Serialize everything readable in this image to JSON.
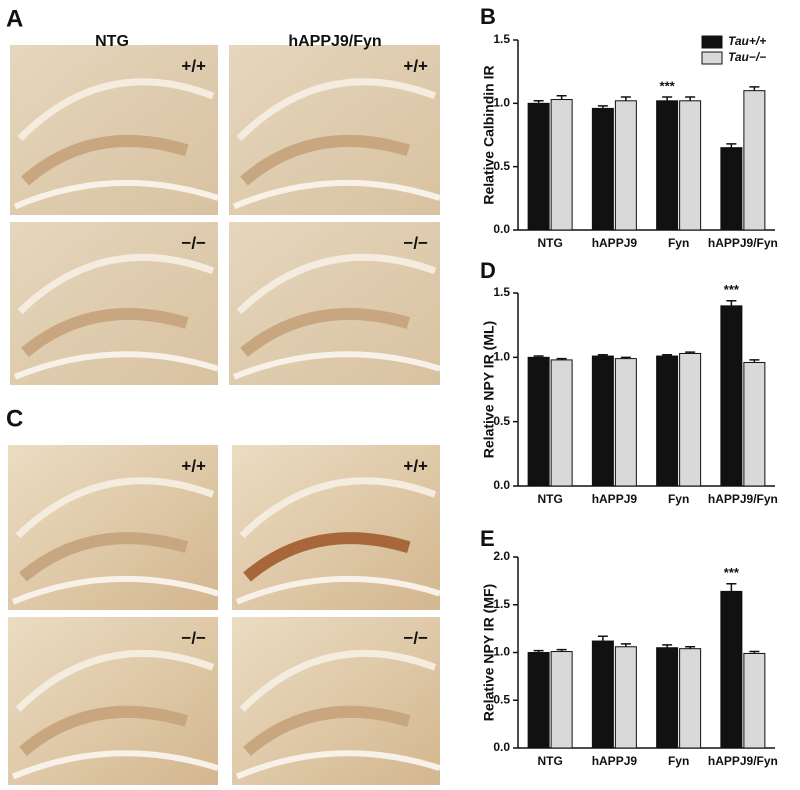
{
  "figure": {
    "panel_labels": [
      "A",
      "C"
    ],
    "column_headers": [
      "NTG",
      "hAPPJ9/Fyn"
    ],
    "images": [
      "+/+",
      "+/+",
      "−/−",
      "−/−",
      "+/+",
      "+/+",
      "−/−",
      "−/−"
    ]
  },
  "chart_data": [
    {
      "type": "bar",
      "panel_label": "B",
      "y_label": "Relative Calbindin IR",
      "categories": [
        "NTG",
        "hAPPJ9",
        "Fyn",
        "hAPPJ9/Fyn"
      ],
      "series": [
        {
          "name": "Tau+/+",
          "color": "#111111",
          "values": [
            1.0,
            0.96,
            1.02,
            0.65
          ],
          "errors": [
            0.02,
            0.02,
            0.03,
            0.03
          ]
        },
        {
          "name": "Tau−/−",
          "color": "#d9d9d9",
          "values": [
            1.03,
            1.02,
            1.02,
            1.1
          ],
          "errors": [
            0.03,
            0.03,
            0.03,
            0.03
          ]
        }
      ],
      "annotation": "***",
      "ylim": [
        0,
        1.5
      ],
      "yticks": [
        {
          "value": 0,
          "label": "0.0"
        },
        0.5,
        {
          "value": 1,
          "label": "1.0"
        },
        1.5
      ]
    },
    {
      "type": "bar",
      "panel_label": "D",
      "y_label": "Relative NPY IR (ML)",
      "categories": [
        "NTG",
        "hAPPJ9",
        "Fyn",
        "hAPPJ9/Fyn"
      ],
      "series": [
        {
          "name": "Tau+/+",
          "color": "#111111",
          "values": [
            1.0,
            1.01,
            1.01,
            1.4
          ],
          "errors": [
            0.01,
            0.01,
            0.01,
            0.04
          ]
        },
        {
          "name": "Tau−/−",
          "color": "#d9d9d9",
          "values": [
            0.98,
            0.99,
            1.03,
            0.96
          ],
          "errors": [
            0.01,
            0.01,
            0.01,
            0.02
          ]
        }
      ],
      "annotation": "***",
      "ylim": [
        0,
        1.5
      ],
      "yticks": [
        {
          "value": 0,
          "label": "0.0"
        },
        0.5,
        {
          "value": 1,
          "label": "1.0"
        },
        1.5
      ]
    },
    {
      "type": "bar",
      "panel_label": "E",
      "y_label": "Relative NPY IR (MF)",
      "categories": [
        "NTG",
        "hAPPJ9",
        "Fyn",
        "hAPPJ9/Fyn"
      ],
      "series": [
        {
          "name": "Tau+/+",
          "color": "#111111",
          "values": [
            1.0,
            1.12,
            1.05,
            1.64
          ],
          "errors": [
            0.02,
            0.05,
            0.03,
            0.08
          ]
        },
        {
          "name": "Tau−/−",
          "color": "#d9d9d9",
          "values": [
            1.01,
            1.06,
            1.04,
            0.99
          ],
          "errors": [
            0.02,
            0.03,
            0.02,
            0.02
          ]
        }
      ],
      "annotation": "***",
      "ylim": [
        0,
        2.0
      ],
      "yticks": [
        {
          "value": 0,
          "label": "0.0"
        },
        0.5,
        {
          "value": 1,
          "label": "1.0"
        },
        1.5,
        {
          "value": 2,
          "label": "2.0"
        }
      ]
    }
  ]
}
